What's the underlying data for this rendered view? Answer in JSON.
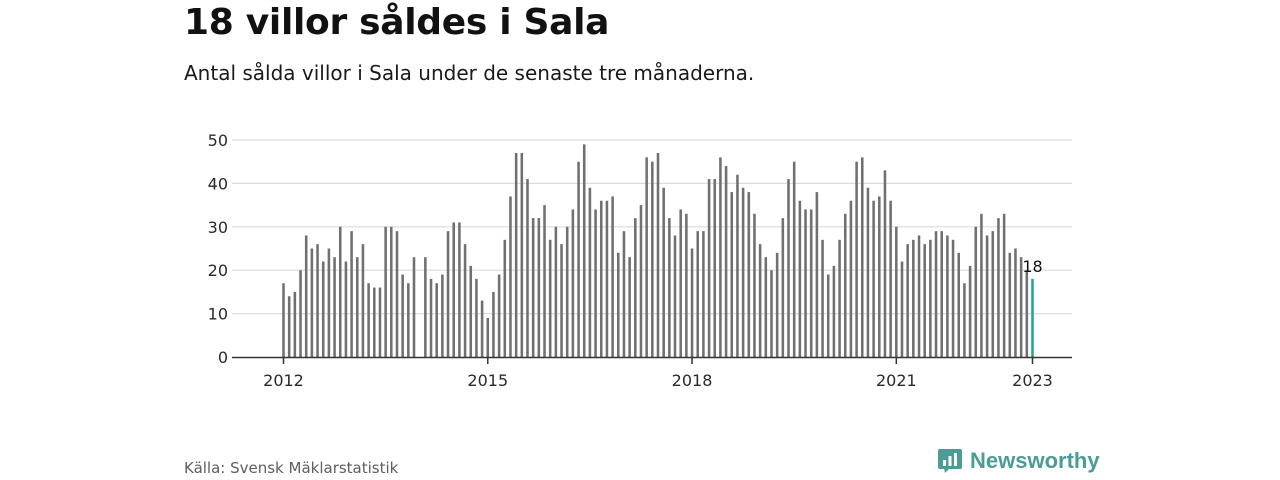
{
  "header": {
    "title": "18 villor såldes i Sala",
    "subtitle": "Antal sålda villor i Sala under de senaste tre månaderna."
  },
  "footer": {
    "source": "Källa: Svensk Mäklarstatistik",
    "brand_name": "Newsworthy",
    "brand_icon": "newsworthy-logo-icon"
  },
  "chart_data": {
    "type": "bar",
    "title": "18 villor såldes i Sala",
    "subtitle": "Antal sålda villor i Sala under de senaste tre månaderna.",
    "xlabel": "",
    "ylabel": "",
    "ylim": [
      0,
      50
    ],
    "y_ticks": [
      0,
      10,
      20,
      30,
      40,
      50
    ],
    "x_ticks": [
      "2012",
      "2015",
      "2018",
      "2021",
      "2023"
    ],
    "grid": true,
    "legend": "none",
    "bar_color": "#707070",
    "highlight_color": "#23a39b",
    "highlight_label": "18",
    "x_start": "2012-01",
    "x_end": "2023-01",
    "values": [
      17,
      14,
      15,
      20,
      28,
      25,
      26,
      22,
      25,
      23,
      30,
      22,
      29,
      23,
      26,
      17,
      16,
      16,
      30,
      30,
      29,
      19,
      17,
      23,
      null,
      23,
      18,
      17,
      19,
      29,
      31,
      31,
      26,
      21,
      18,
      13,
      9,
      15,
      19,
      27,
      37,
      47,
      47,
      41,
      32,
      32,
      35,
      27,
      30,
      26,
      30,
      34,
      45,
      49,
      39,
      34,
      36,
      36,
      37,
      24,
      29,
      23,
      32,
      35,
      46,
      45,
      47,
      39,
      32,
      28,
      34,
      33,
      25,
      29,
      29,
      41,
      41,
      46,
      44,
      38,
      42,
      39,
      38,
      33,
      26,
      23,
      20,
      24,
      32,
      41,
      45,
      36,
      34,
      34,
      38,
      27,
      19,
      21,
      27,
      33,
      36,
      45,
      46,
      39,
      36,
      37,
      43,
      36,
      30,
      22,
      26,
      27,
      28,
      26,
      27,
      29,
      29,
      28,
      27,
      24,
      17,
      21,
      30,
      33,
      28,
      29,
      32,
      33,
      24,
      25,
      23,
      20,
      18
    ]
  }
}
